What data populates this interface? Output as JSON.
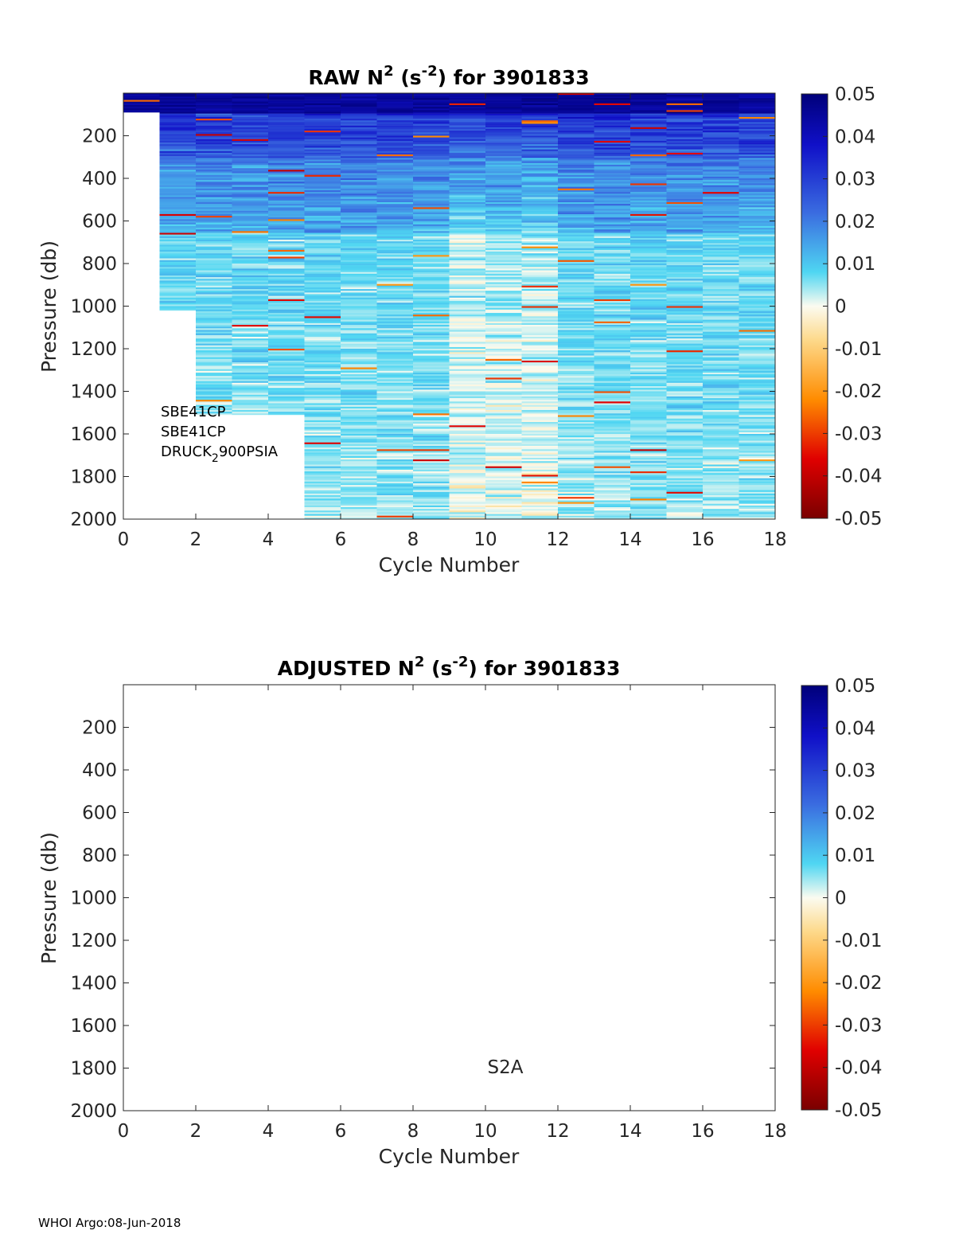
{
  "footer": "WHOI Argo:08-Jun-2018",
  "chart_data": [
    {
      "type": "heatmap",
      "title": {
        "prefix": "RAW N",
        "sup1": "2",
        "mid": " (s",
        "sup2": "-2",
        "suffix": ") for 3901833"
      },
      "xlabel": "Cycle Number",
      "ylabel": "Pressure (db)",
      "xlim": [
        0,
        18
      ],
      "ylim": [
        2000,
        0
      ],
      "y_reversed": true,
      "xticks": [
        "0",
        "2",
        "4",
        "6",
        "8",
        "10",
        "12",
        "14",
        "16",
        "18"
      ],
      "yticks": [
        "200",
        "400",
        "600",
        "800",
        "1000",
        "1200",
        "1400",
        "1600",
        "1800",
        "2000"
      ],
      "colorbar": {
        "min": -0.05,
        "max": 0.05,
        "ticks": [
          "0.05",
          "0.04",
          "0.03",
          "0.02",
          "0.01",
          "0",
          "-0.01",
          "-0.02",
          "-0.03",
          "-0.04",
          "-0.05"
        ]
      },
      "annotation": {
        "line1": "SBE41CP",
        "line2": "SBE41CP",
        "line3_main": "DRUCK",
        "line3_sub": "2",
        "line3_end": "900PSIA"
      },
      "profiles": [
        {
          "cycle_start": 0,
          "cycle_end": 1,
          "p_min": 0,
          "p_max": 90
        },
        {
          "cycle_start": 1,
          "cycle_end": 2,
          "p_min": 0,
          "p_max": 1020
        },
        {
          "cycle_start": 2,
          "cycle_end": 3,
          "p_min": 0,
          "p_max": 1510
        },
        {
          "cycle_start": 3,
          "cycle_end": 4,
          "p_min": 0,
          "p_max": 1510
        },
        {
          "cycle_start": 4,
          "cycle_end": 5,
          "p_min": 0,
          "p_max": 1510
        },
        {
          "cycle_start": 5,
          "cycle_end": 6,
          "p_min": 0,
          "p_max": 2000
        },
        {
          "cycle_start": 6,
          "cycle_end": 7,
          "p_min": 0,
          "p_max": 2000
        },
        {
          "cycle_start": 7,
          "cycle_end": 8,
          "p_min": 0,
          "p_max": 2000
        },
        {
          "cycle_start": 8,
          "cycle_end": 9,
          "p_min": 0,
          "p_max": 2000
        },
        {
          "cycle_start": 9,
          "cycle_end": 10,
          "p_min": 0,
          "p_max": 2000
        },
        {
          "cycle_start": 10,
          "cycle_end": 11,
          "p_min": 0,
          "p_max": 2000
        },
        {
          "cycle_start": 11,
          "cycle_end": 12,
          "p_min": 0,
          "p_max": 2000
        },
        {
          "cycle_start": 12,
          "cycle_end": 13,
          "p_min": 0,
          "p_max": 2000
        },
        {
          "cycle_start": 13,
          "cycle_end": 14,
          "p_min": 0,
          "p_max": 2000
        },
        {
          "cycle_start": 14,
          "cycle_end": 15,
          "p_min": 0,
          "p_max": 2000
        },
        {
          "cycle_start": 15,
          "cycle_end": 16,
          "p_min": 0,
          "p_max": 2000
        },
        {
          "cycle_start": 16,
          "cycle_end": 17,
          "p_min": 0,
          "p_max": 2000
        },
        {
          "cycle_start": 17,
          "cycle_end": 18,
          "p_min": 0,
          "p_max": 2000
        }
      ]
    },
    {
      "type": "heatmap",
      "title": {
        "prefix": "ADJUSTED N",
        "sup1": "2",
        "mid": " (s",
        "sup2": "-2",
        "suffix": ") for 3901833"
      },
      "xlabel": "Cycle Number",
      "ylabel": "Pressure (db)",
      "xlim": [
        0,
        18
      ],
      "ylim": [
        2000,
        0
      ],
      "y_reversed": true,
      "xticks": [
        "0",
        "2",
        "4",
        "6",
        "8",
        "10",
        "12",
        "14",
        "16",
        "18"
      ],
      "yticks": [
        "200",
        "400",
        "600",
        "800",
        "1000",
        "1200",
        "1400",
        "1600",
        "1800",
        "2000"
      ],
      "colorbar": {
        "min": -0.05,
        "max": 0.05,
        "ticks": [
          "0.05",
          "0.04",
          "0.03",
          "0.02",
          "0.01",
          "0",
          "-0.01",
          "-0.02",
          "-0.03",
          "-0.04",
          "-0.05"
        ]
      },
      "annotation": {
        "line1": "S2A"
      },
      "profiles": []
    }
  ]
}
